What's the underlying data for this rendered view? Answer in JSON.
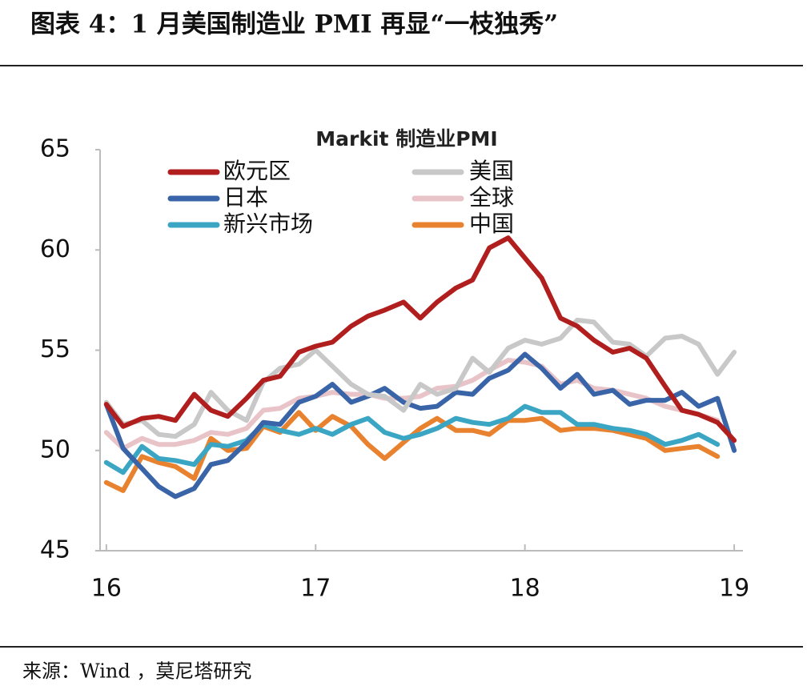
{
  "heading": "图表 4：1 月美国制造业 PMI 再显“一枝独秀”",
  "source": "来源：Wind ，莫尼塔研究",
  "chart_data": {
    "type": "line",
    "title": "Markit 制造业PMI",
    "x": [
      16,
      16.08,
      16.17,
      16.25,
      16.33,
      16.42,
      16.5,
      16.58,
      16.67,
      16.75,
      16.83,
      16.92,
      17,
      17.08,
      17.17,
      17.25,
      17.33,
      17.42,
      17.5,
      17.58,
      17.67,
      17.75,
      17.83,
      17.92,
      18,
      18.08,
      18.17,
      18.25,
      18.33,
      18.42,
      18.5,
      18.58,
      18.67,
      18.75,
      18.83,
      18.92,
      19
    ],
    "xlim": [
      15.97,
      19.08
    ],
    "xticks": [
      16,
      17,
      18,
      19
    ],
    "ylim": [
      45,
      65
    ],
    "yticks": [
      45,
      50,
      55,
      60,
      65
    ],
    "legend": "top",
    "series": [
      {
        "name": "欧元区",
        "color": "#b01e1e",
        "values": [
          52.3,
          51.2,
          51.6,
          51.7,
          51.5,
          52.8,
          52.0,
          51.7,
          52.6,
          53.5,
          53.7,
          54.9,
          55.2,
          55.4,
          56.2,
          56.7,
          57.0,
          57.4,
          56.6,
          57.4,
          58.1,
          58.5,
          60.1,
          60.6,
          59.6,
          58.6,
          56.6,
          56.2,
          55.5,
          54.9,
          55.1,
          54.6,
          53.2,
          52.0,
          51.8,
          51.4,
          50.5
        ]
      },
      {
        "name": "美国",
        "color": "#c8c8c8",
        "values": [
          52.4,
          51.3,
          51.5,
          50.8,
          50.7,
          51.3,
          52.9,
          52.0,
          51.5,
          53.4,
          54.1,
          54.3,
          55.0,
          54.2,
          53.3,
          52.8,
          52.7,
          52.0,
          53.3,
          52.8,
          53.1,
          54.6,
          53.9,
          55.1,
          55.5,
          55.3,
          55.6,
          56.5,
          56.4,
          55.4,
          55.3,
          54.7,
          55.6,
          55.7,
          55.3,
          53.8,
          54.9
        ]
      },
      {
        "name": "日本",
        "color": "#3a64a8",
        "values": [
          52.3,
          50.1,
          49.1,
          48.2,
          47.7,
          48.1,
          49.3,
          49.5,
          50.4,
          51.4,
          51.3,
          52.4,
          52.7,
          53.3,
          52.4,
          52.7,
          53.1,
          52.4,
          52.1,
          52.2,
          52.9,
          52.8,
          53.6,
          54.0,
          54.8,
          54.1,
          53.1,
          53.8,
          52.8,
          53.0,
          52.3,
          52.5,
          52.5,
          52.9,
          52.2,
          52.6,
          50.0
        ]
      },
      {
        "name": "全球",
        "color": "#e8c3c8",
        "values": [
          50.9,
          50.1,
          50.6,
          50.3,
          50.3,
          50.5,
          50.9,
          50.8,
          51.1,
          52.0,
          52.1,
          52.6,
          52.7,
          52.9,
          52.8,
          52.8,
          52.6,
          52.6,
          52.7,
          53.1,
          53.2,
          53.5,
          54.0,
          54.5,
          54.4,
          54.2,
          53.3,
          53.5,
          53.1,
          53.0,
          52.8,
          52.6,
          52.2,
          52.0,
          51.8,
          51.5,
          null
        ]
      },
      {
        "name": "新兴市场",
        "color": "#3aa6c4",
        "values": [
          49.4,
          48.9,
          50.2,
          49.6,
          49.5,
          49.3,
          50.3,
          50.2,
          50.5,
          51.3,
          51.0,
          50.8,
          51.1,
          50.8,
          51.3,
          51.6,
          50.9,
          50.6,
          50.8,
          51.1,
          51.6,
          51.4,
          51.3,
          51.6,
          52.2,
          51.9,
          51.9,
          51.3,
          51.3,
          51.1,
          51.0,
          50.8,
          50.3,
          50.5,
          50.8,
          50.3,
          null
        ]
      },
      {
        "name": "中国",
        "color": "#e8822e",
        "values": [
          48.4,
          48.0,
          49.7,
          49.4,
          49.2,
          48.6,
          50.6,
          50.0,
          50.1,
          51.2,
          50.9,
          51.9,
          51.0,
          51.7,
          51.2,
          50.3,
          49.6,
          50.4,
          51.1,
          51.6,
          51.0,
          51.0,
          50.8,
          51.5,
          51.5,
          51.6,
          51.0,
          51.1,
          51.1,
          51.0,
          50.8,
          50.6,
          50.0,
          50.1,
          50.2,
          49.7,
          null
        ]
      }
    ]
  }
}
